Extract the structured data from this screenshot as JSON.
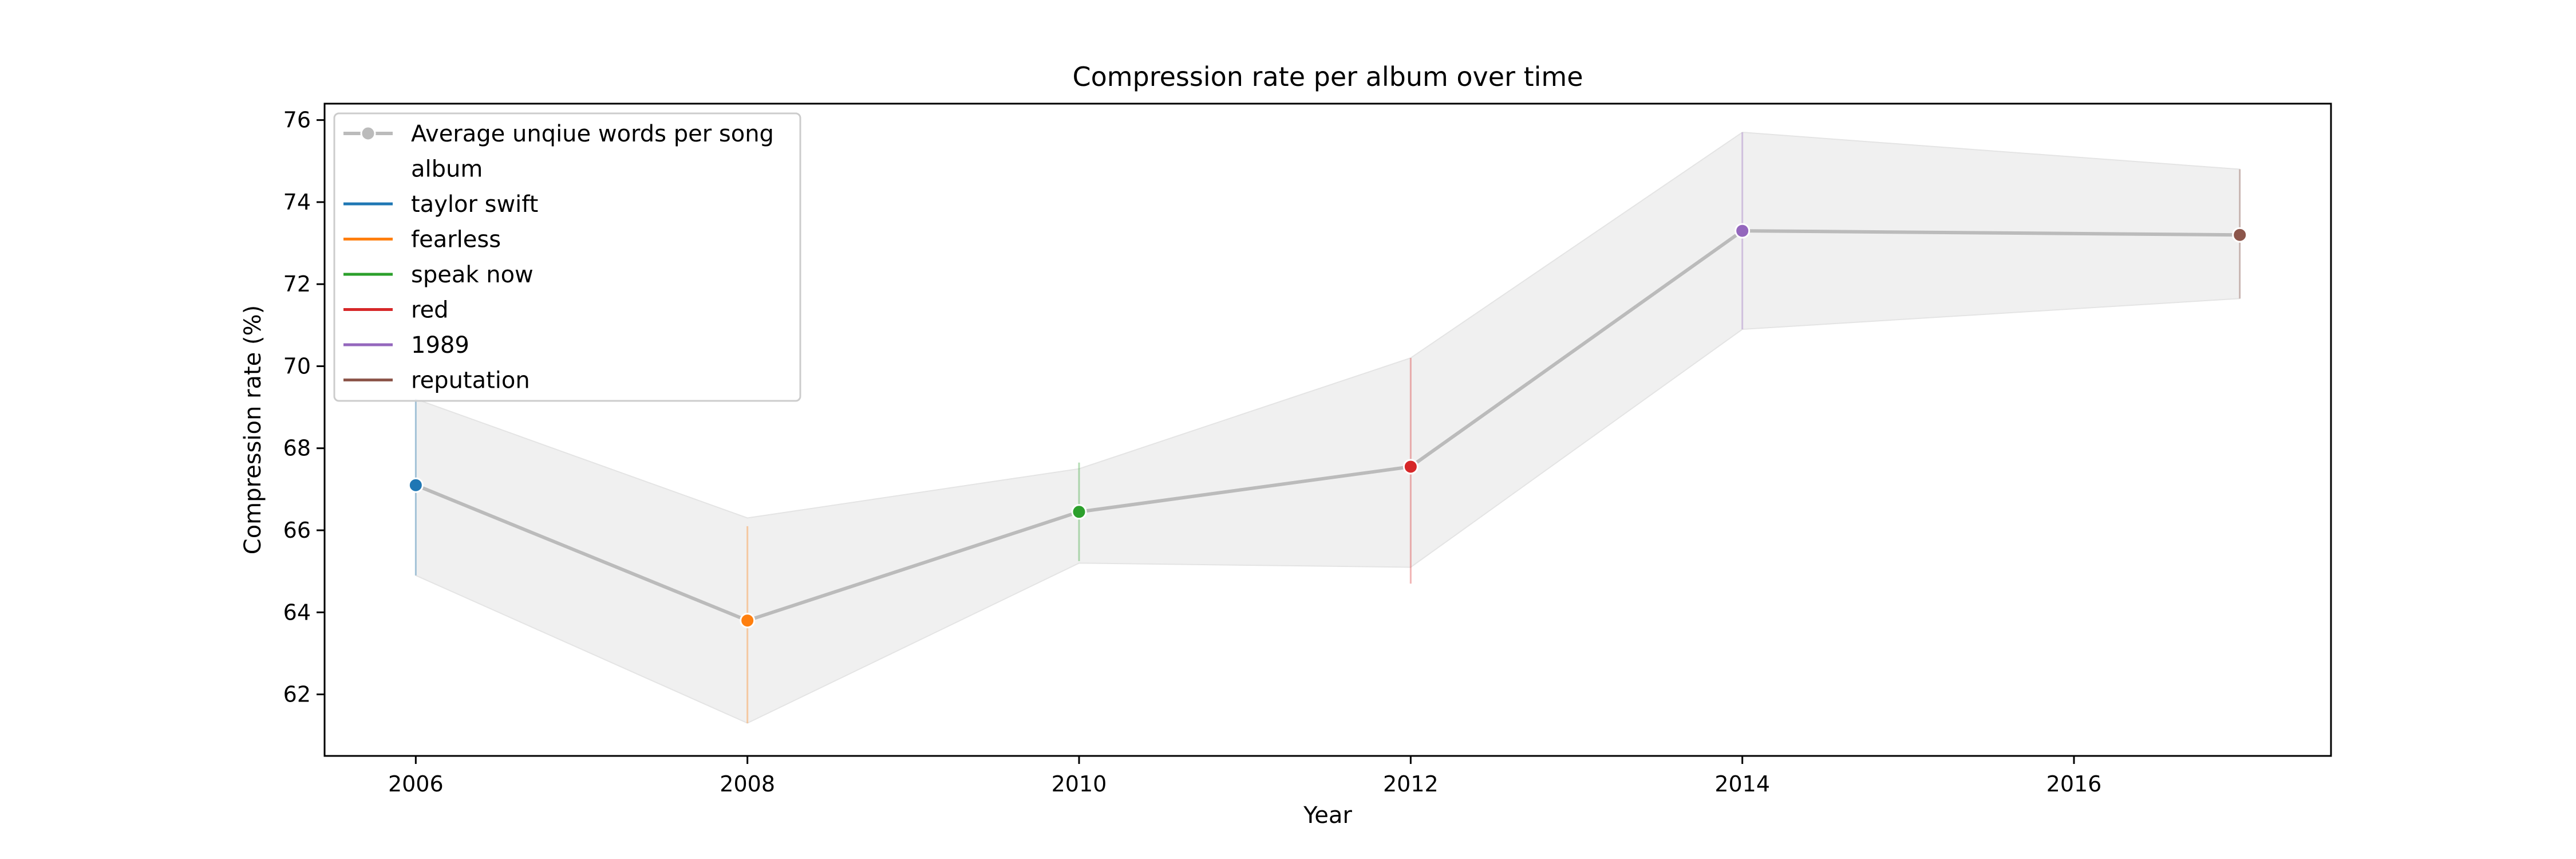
{
  "chart_data": {
    "type": "line",
    "title": "Compression rate per album over time",
    "xlabel": "Year",
    "ylabel": "Compression rate (%)",
    "xlim": [
      2005.45,
      2017.55
    ],
    "ylim": [
      60.5,
      76.4
    ],
    "x_ticks": [
      "2006",
      "2008",
      "2010",
      "2012",
      "2014",
      "2016"
    ],
    "y_ticks": [
      "62",
      "64",
      "66",
      "68",
      "70",
      "72",
      "74",
      "76"
    ],
    "grid": false,
    "legend_position": "top-left",
    "line_color": "#bbbbbb",
    "band_color": "#f0f0f0",
    "series": [
      {
        "name": "Average unqiue words per song",
        "x": [
          2006,
          2008,
          2010,
          2012,
          2014,
          2017
        ],
        "y": [
          67.1,
          63.8,
          66.45,
          67.55,
          73.3,
          73.2
        ],
        "ci_low": [
          64.9,
          61.3,
          65.2,
          65.1,
          70.9,
          71.65
        ],
        "ci_high": [
          69.2,
          66.3,
          67.5,
          70.2,
          75.7,
          74.8
        ],
        "err_low": [
          64.9,
          61.3,
          65.25,
          64.7,
          70.9,
          71.65
        ],
        "err_high": [
          69.2,
          66.1,
          67.65,
          70.2,
          75.7,
          74.8
        ]
      }
    ],
    "legend_heading": "album",
    "albums": [
      {
        "name": "taylor swift",
        "color": "#1f77b4",
        "x": 2006
      },
      {
        "name": "fearless",
        "color": "#ff7f0e",
        "x": 2008
      },
      {
        "name": "speak now",
        "color": "#2ca02c",
        "x": 2010
      },
      {
        "name": "red",
        "color": "#d62728",
        "x": 2012
      },
      {
        "name": "1989",
        "color": "#9467bd",
        "x": 2014
      },
      {
        "name": "reputation",
        "color": "#8c564b",
        "x": 2017
      }
    ]
  }
}
